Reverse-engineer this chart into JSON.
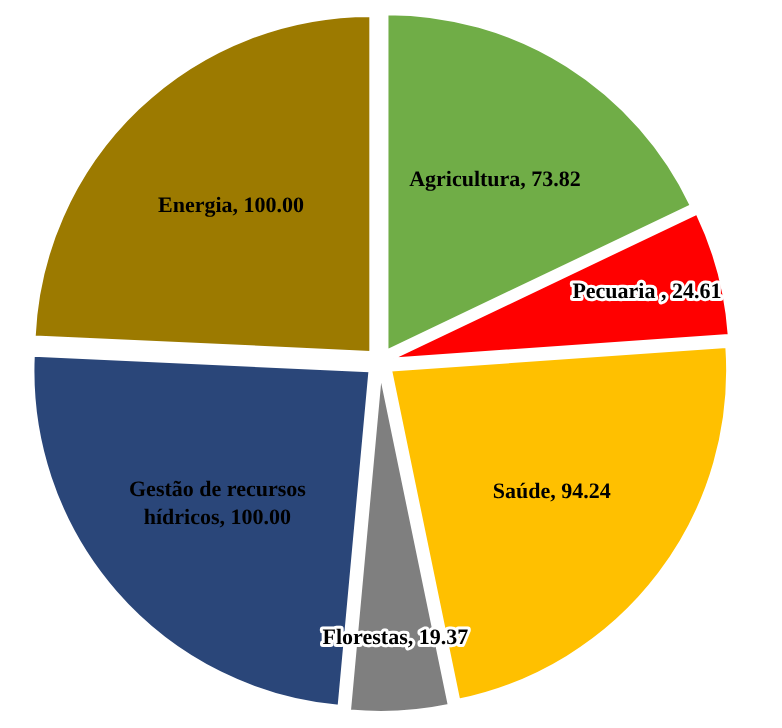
{
  "chart_data": {
    "type": "pie",
    "categories": [
      "Agricultura",
      "Pecuaria ",
      "Saúde",
      "Florestas",
      "Gestão de recursos hídricos",
      "Energia"
    ],
    "values": [
      73.82,
      24.61,
      94.24,
      19.37,
      100.0,
      100.0
    ],
    "value_labels": [
      "73.82",
      "24.61",
      "94.24",
      "19.37",
      "100.00",
      "100.00"
    ],
    "colors": [
      "#70ad47",
      "#ff0000",
      "#ffc000",
      "#7f7f7f",
      "#2a4679",
      "#9c7a00"
    ]
  }
}
